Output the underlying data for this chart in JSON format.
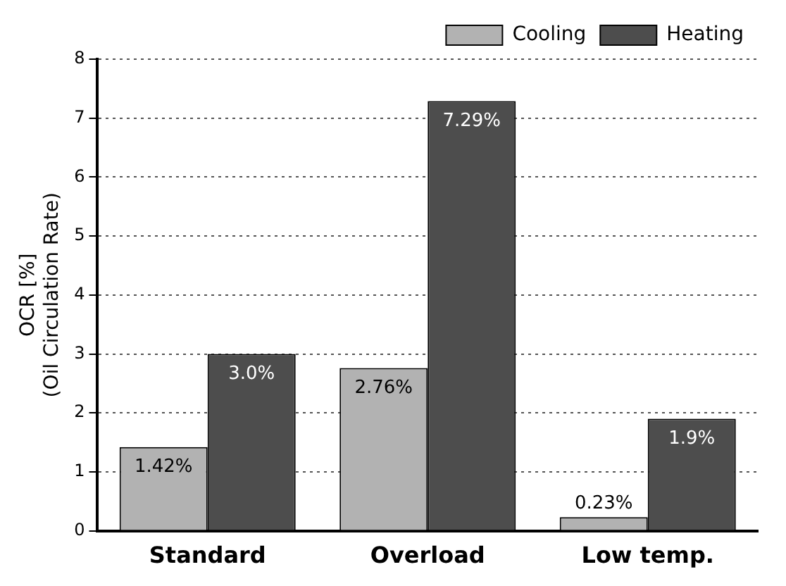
{
  "chart_data": {
    "type": "bar",
    "ylabel": "OCR [%]\n(Oil Circulation Rate)",
    "categories": [
      "Standard",
      "Overload",
      "Low temp."
    ],
    "series": [
      {
        "name": "Cooling",
        "color": "#b2b2b2",
        "values": [
          1.42,
          2.76,
          0.23
        ],
        "value_labels": [
          "1.42%",
          "2.76%",
          "0.23%"
        ]
      },
      {
        "name": "Heating",
        "color": "#4d4d4d",
        "values": [
          3.0,
          7.29,
          1.9
        ],
        "value_labels": [
          "3.0%",
          "7.29%",
          "1.9%"
        ]
      }
    ],
    "ylim": [
      0,
      8
    ],
    "yticks": [
      0,
      1,
      2,
      3,
      4,
      5,
      6,
      7,
      8
    ],
    "grid": "y",
    "legend": "top right"
  }
}
